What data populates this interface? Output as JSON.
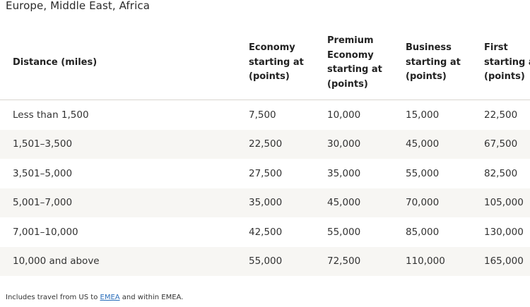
{
  "region_title": "Europe, Middle East, Africa",
  "table": {
    "headers": [
      "Distance (miles)",
      "Economy\nstarting at\n(points)",
      "Premium\nEconomy\nstarting at\n(points)",
      "Business\nstarting at\n(points)",
      "First\nstarting at\n(points)"
    ],
    "rows": [
      [
        "Less than 1,500",
        "7,500",
        "10,000",
        "15,000",
        "22,500"
      ],
      [
        "1,501–3,500",
        "22,500",
        "30,000",
        "45,000",
        "67,500"
      ],
      [
        "3,501–5,000",
        "27,500",
        "35,000",
        "55,000",
        "82,500"
      ],
      [
        "5,001–7,000",
        "35,000",
        "45,000",
        "70,000",
        "105,000"
      ],
      [
        "7,001–10,000",
        "42,500",
        "55,000",
        "85,000",
        "130,000"
      ],
      [
        "10,000 and above",
        "55,000",
        "72,500",
        "110,000",
        "165,000"
      ]
    ]
  },
  "footnote": {
    "prefix": "Includes travel from US to ",
    "link_text": "EMEA",
    "suffix": " and within EMEA."
  },
  "colors": {
    "link": "#2a6ebb",
    "row_alt_bg": "#f7f6f3",
    "header_divider": "#d9d6d0"
  }
}
